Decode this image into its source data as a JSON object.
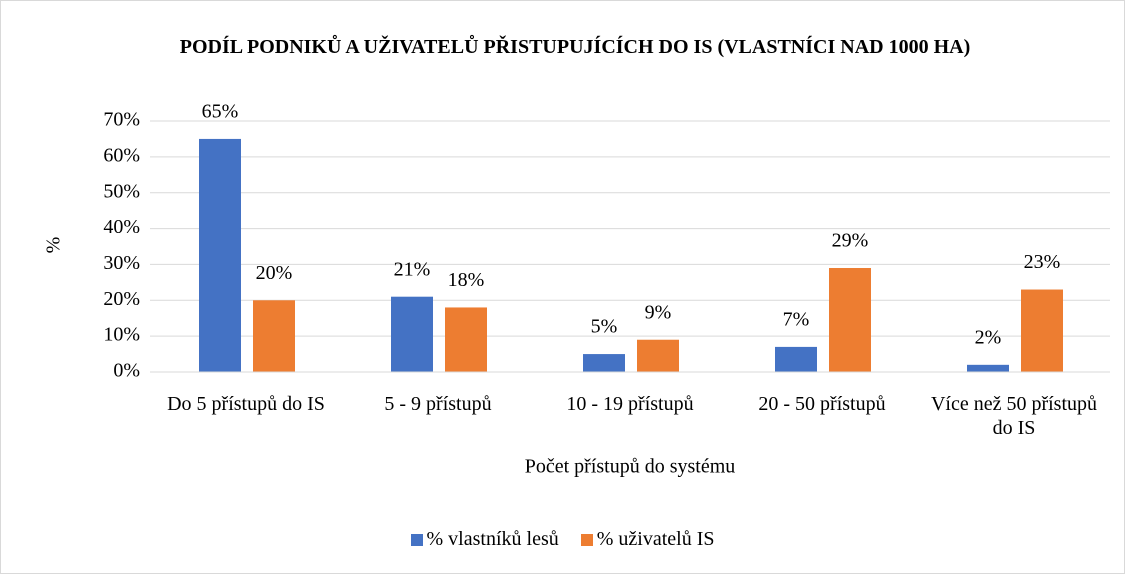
{
  "chart_data": {
    "type": "bar",
    "title": "PODÍL PODNIKŮ A UŽIVATELŮ PŘISTUPUJÍCÍCH DO IS (VLASTNÍCI NAD 1000 HA)",
    "x_label": "Počet přístupů do systému",
    "y_label": "%",
    "categories": [
      "Do 5 přístupů do IS",
      "5 - 9 přístupů",
      "10 - 19 přístupů",
      "20 - 50 přístupů",
      "Více než 50 přístupů do IS"
    ],
    "series": [
      {
        "name": "% vlastníků lesů",
        "color": "#4472c4",
        "values": [
          65,
          21,
          5,
          7,
          2
        ],
        "value_labels": [
          "65%",
          "21%",
          "5%",
          "7%",
          "2%"
        ]
      },
      {
        "name": "% uživatelů IS",
        "color": "#ed7d31",
        "values": [
          20,
          18,
          9,
          29,
          23
        ],
        "value_labels": [
          "20%",
          "18%",
          "9%",
          "29%",
          "23%"
        ]
      }
    ],
    "ylim": [
      0,
      70
    ],
    "yticks": [
      {
        "value": 0,
        "label": "0%"
      },
      {
        "value": 10,
        "label": "10%"
      },
      {
        "value": 20,
        "label": "20%"
      },
      {
        "value": 30,
        "label": "30%"
      },
      {
        "value": 40,
        "label": "40%"
      },
      {
        "value": 50,
        "label": "50%"
      },
      {
        "value": 60,
        "label": "60%"
      },
      {
        "value": 70,
        "label": "70%"
      }
    ],
    "grid": true,
    "legend": "bottom"
  }
}
